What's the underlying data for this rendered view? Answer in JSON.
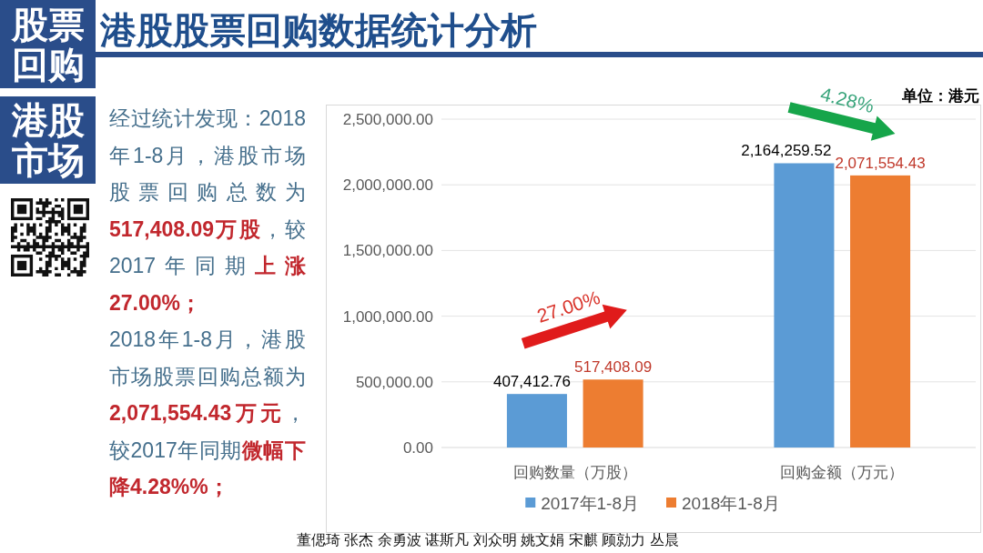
{
  "chart_data": {
    "type": "bar",
    "title": "港股股票回购数据统计分析",
    "categories": [
      "回购数量（万股）",
      "回购金额（万元）"
    ],
    "series": [
      {
        "name": "2017年1-8月",
        "color": "#5b9bd5",
        "values": [
          407412.76,
          2164259.52
        ],
        "value_labels": [
          "407,412.76",
          "2,164,259.52"
        ]
      },
      {
        "name": "2018年1-8月",
        "color": "#ed7d31",
        "values": [
          517408.09,
          2071554.43
        ],
        "value_labels": [
          "517,408.09",
          "2,071,554.43"
        ]
      }
    ],
    "ylim": [
      0,
      2500000
    ],
    "yticks": [
      {
        "value": 0,
        "label": "0.00"
      },
      {
        "value": 500000,
        "label": "500,000.00"
      },
      {
        "value": 1000000,
        "label": "1,000,000.00"
      },
      {
        "value": 1500000,
        "label": "1,500,000.00"
      },
      {
        "value": 2000000,
        "label": "2,000,000.00"
      },
      {
        "value": 2500000,
        "label": "2,500,000.00"
      }
    ],
    "grid": "y",
    "legend": "bottom",
    "annotations": [
      "股票回购",
      "港股市场",
      "单位：港元",
      "经过统计发现：2018",
      "年1-8月，港股市场",
      "股票回购总数为",
      "517,408.09万股",
      "，较",
      "2017年同期",
      "上涨",
      "27.00%；",
      "2018年1-8月，港股",
      "市场股票回购总额为",
      "2,071,554.43万元",
      "，",
      "较2017年同期",
      "微幅下",
      "降4.28%%；",
      "27.00%",
      "4.28%",
      "董偲琦 张杰 余勇波 谌斯凡 刘众明 姚文娟 宋麒 顾勍力 丛晨"
    ]
  }
}
